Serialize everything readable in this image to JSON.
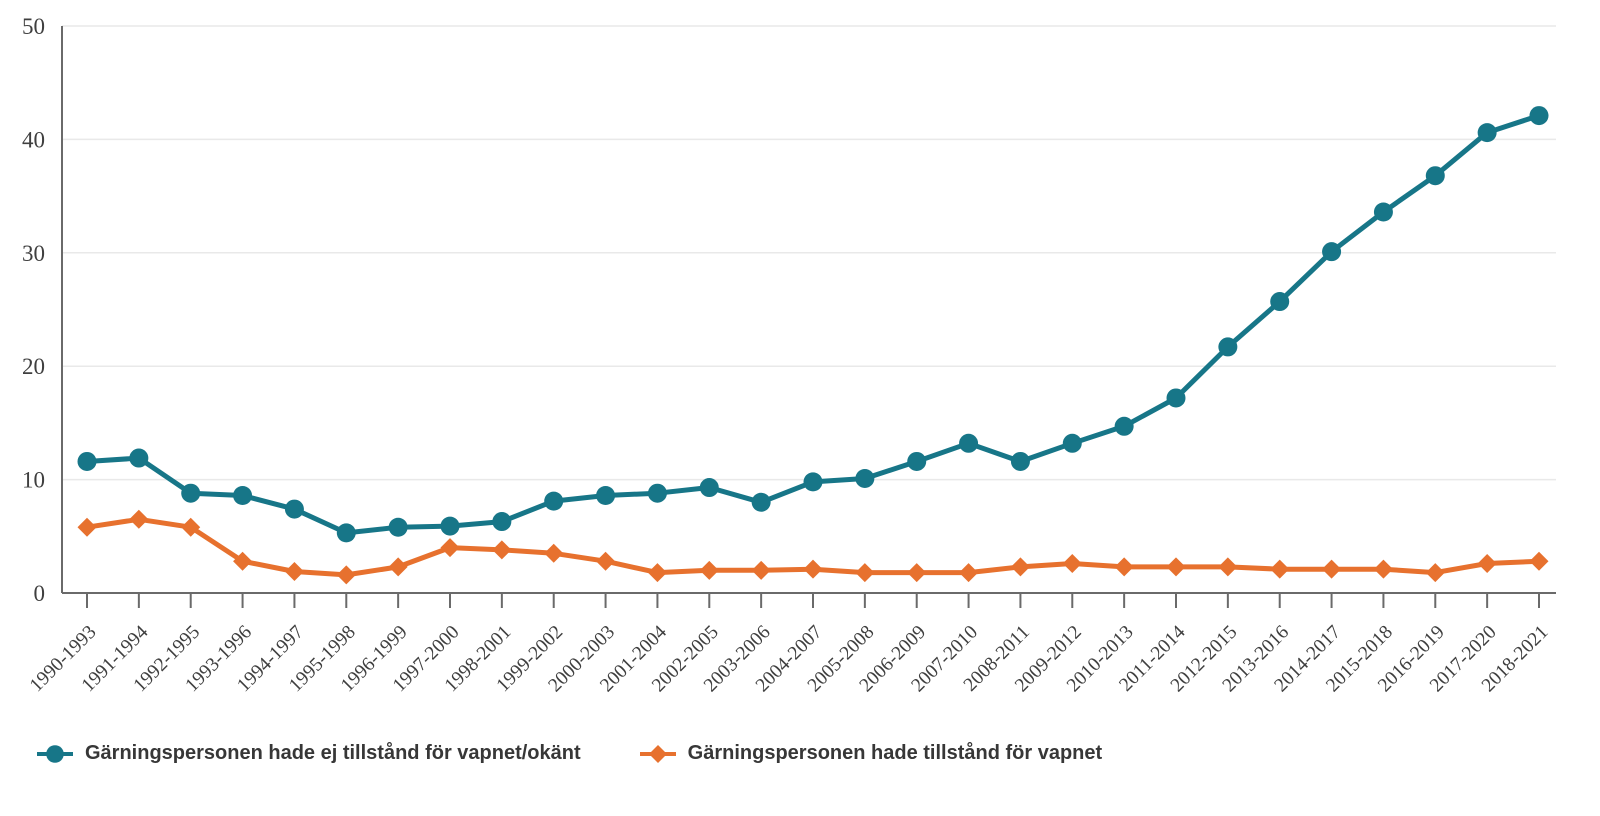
{
  "chart_data": {
    "type": "line",
    "title": "",
    "xlabel": "",
    "ylabel": "",
    "ylim": [
      0,
      50
    ],
    "y_ticks": [
      0,
      10,
      20,
      30,
      40,
      50
    ],
    "grid": true,
    "legend_position": "bottom",
    "categories": [
      "1990-1993",
      "1991-1994",
      "1992-1995",
      "1993-1996",
      "1994-1997",
      "1995-1998",
      "1996-1999",
      "1997-2000",
      "1998-2001",
      "1999-2002",
      "2000-2003",
      "2001-2004",
      "2002-2005",
      "2003-2006",
      "2004-2007",
      "2005-2008",
      "2006-2009",
      "2007-2010",
      "2008-2011",
      "2009-2012",
      "2010-2013",
      "2011-2014",
      "2012-2015",
      "2013-2016",
      "2014-2017",
      "2015-2018",
      "2016-2019",
      "2017-2020",
      "2018-2021"
    ],
    "series": [
      {
        "name": "Gärningspersonen hade ej tillstånd för vapnet/okänt",
        "marker": "circle",
        "color": "#177688",
        "values": [
          11.6,
          11.9,
          8.8,
          8.6,
          7.4,
          5.3,
          5.8,
          5.9,
          6.3,
          8.1,
          8.6,
          8.8,
          9.3,
          8.0,
          9.8,
          10.1,
          11.6,
          13.2,
          11.6,
          13.2,
          14.7,
          17.2,
          21.7,
          25.7,
          30.1,
          33.6,
          36.8,
          40.6,
          42.1
        ]
      },
      {
        "name": "Gärningspersonen hade tillstånd för vapnet",
        "marker": "diamond",
        "color": "#e7712e",
        "values": [
          5.8,
          6.5,
          5.8,
          2.8,
          1.9,
          1.6,
          2.3,
          4.0,
          3.8,
          3.5,
          2.8,
          1.8,
          2.0,
          2.0,
          2.1,
          1.8,
          1.8,
          1.8,
          2.3,
          2.6,
          2.3,
          2.3,
          2.3,
          2.1,
          2.1,
          2.1,
          1.8,
          2.6,
          2.8
        ]
      }
    ]
  },
  "colors": {
    "background": "#ffffff",
    "grid": "#e9e9e9",
    "axis": "#6a6a6a",
    "tick_label": "#3f3f3f",
    "legend_text": "#373737"
  }
}
